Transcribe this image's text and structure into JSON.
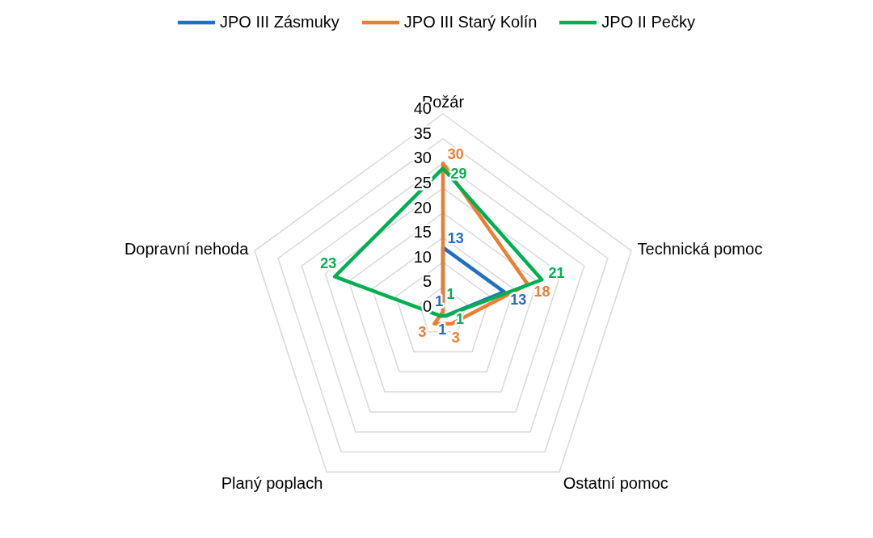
{
  "chart_data": {
    "type": "radar",
    "categories": [
      "Požár",
      "Technická pomoc",
      "Ostatní pomoc",
      "Planý poplach",
      "Dopravní nehoda"
    ],
    "ylim": [
      0,
      40
    ],
    "yticks": [
      0,
      5,
      10,
      15,
      20,
      25,
      30,
      35,
      40
    ],
    "grid": true,
    "legend": "top",
    "marker": "none",
    "series": [
      {
        "name": "JPO III Zásmuky",
        "color": "#1f6fc5",
        "values": [
          13,
          13,
          1,
          1,
          0
        ],
        "value_labels": [
          "13",
          "13",
          "1",
          "1",
          null
        ]
      },
      {
        "name": "JPO III Starý Kolín",
        "color": "#ed7d31",
        "values": [
          30,
          18,
          3,
          3,
          0
        ],
        "value_labels": [
          "30",
          "18",
          "3",
          "3",
          null
        ]
      },
      {
        "name": "JPO II Pečky",
        "color": "#00b050",
        "values": [
          29,
          21,
          1,
          1,
          23
        ],
        "value_labels": [
          "29",
          "21",
          "1",
          "1",
          "23"
        ]
      }
    ]
  }
}
